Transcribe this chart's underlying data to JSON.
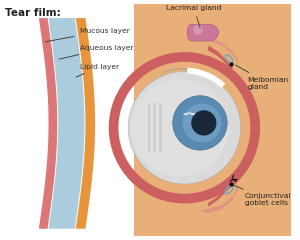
{
  "background_color": "#ffffff",
  "title_text": "Tear film:",
  "labels": {
    "mucous_layer": "Mucous layer",
    "aqueous_layer": "Aqueous layer",
    "lipid_layer": "Lipid layer",
    "lacrimal_gland": "Lacrimal gland",
    "meibomian_gland": "Meibomian\ngland",
    "conjunctival_goblet_cells": "Conjunctival\ngoblet cells"
  },
  "colors": {
    "skin_tan": "#E8B078",
    "skin_tan2": "#D9A060",
    "skin_pink": "#CC6060",
    "skin_pink2": "#DD8888",
    "eye_sclera": "#C8C8C8",
    "eye_sclera2": "#DADADA",
    "iris_blue": "#5A8AB0",
    "iris_blue2": "#7AAAD0",
    "pupil_dark": "#182838",
    "tear_lipid": "#E8943A",
    "tear_aqueous": "#AACCDD",
    "tear_mucous": "#DD7777",
    "lacrimal_pink": "#CC7799",
    "meibomian_cyan": "#66AACC",
    "anno_line": "#444444",
    "white": "#FFFFFF",
    "light_gray": "#BBBBBB"
  },
  "label_fontsize": 5.4,
  "title_fontsize": 7.5
}
